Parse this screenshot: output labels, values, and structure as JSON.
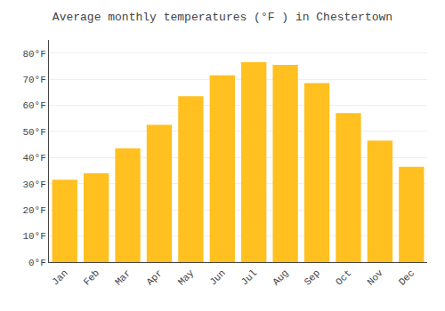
{
  "chart_data": {
    "type": "bar",
    "title": "Average monthly temperatures (°F ) in Chestertown",
    "categories": [
      "Jan",
      "Feb",
      "Mar",
      "Apr",
      "May",
      "Jun",
      "Jul",
      "Aug",
      "Sep",
      "Oct",
      "Nov",
      "Dec"
    ],
    "values": [
      31.5,
      34.0,
      43.5,
      52.5,
      63.5,
      71.5,
      76.5,
      75.5,
      68.5,
      57.0,
      46.5,
      36.5
    ],
    "color": "#FFC020",
    "ylim": [
      0,
      85
    ],
    "yticks": [
      {
        "value": 0,
        "label": "0°F"
      },
      {
        "value": 10,
        "label": "10°F"
      },
      {
        "value": 20,
        "label": "20°F"
      },
      {
        "value": 30,
        "label": "30°F"
      },
      {
        "value": 40,
        "label": "40°F"
      },
      {
        "value": 50,
        "label": "50°F"
      },
      {
        "value": 60,
        "label": "60°F"
      },
      {
        "value": 70,
        "label": "70°F"
      },
      {
        "value": 80,
        "label": "80°F"
      }
    ],
    "grid": true
  }
}
